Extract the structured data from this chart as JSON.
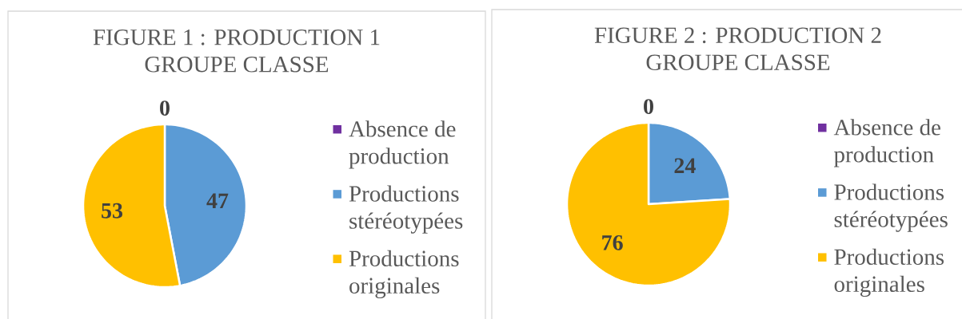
{
  "chart_data": [
    {
      "type": "pie",
      "title": "FIGURE 1 : PRODUCTION 1 GROUPE CLASSE",
      "categories": [
        "Absence de production",
        "Productions stéréotypées",
        "Productions originales"
      ],
      "values": [
        0,
        47,
        53
      ],
      "value_labels": [
        "0",
        "47",
        "53"
      ],
      "colors": [
        "#7030a0",
        "#5b9bd5",
        "#ffc000"
      ],
      "legend": "right"
    },
    {
      "type": "pie",
      "title": "FIGURE 2 : PRODUCTION 2 GROUPE CLASSE",
      "categories": [
        "Absence de production",
        "Productions stéréotypées",
        "Productions originales"
      ],
      "values": [
        0,
        24,
        76
      ],
      "value_labels": [
        "0",
        "24",
        "76"
      ],
      "colors": [
        "#7030a0",
        "#5b9bd5",
        "#ffc000"
      ],
      "legend": "right"
    }
  ]
}
